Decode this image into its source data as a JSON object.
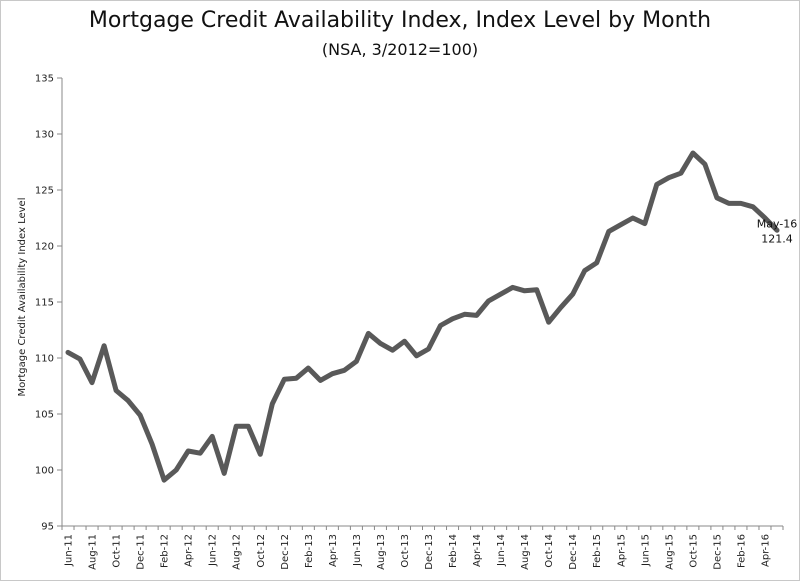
{
  "chart_data": {
    "type": "line",
    "title": "Mortgage Credit Availability Index, Index Level by Month",
    "subtitle": "(NSA, 3/2012=100)",
    "ylabel": "Mortgage Credit Availability Index Level",
    "xlabel": "",
    "ylim": [
      95,
      135
    ],
    "yticks": [
      95,
      100,
      105,
      110,
      115,
      120,
      125,
      130,
      135
    ],
    "xtick_labels": [
      "Jun-11",
      "Aug-11",
      "Oct-11",
      "Dec-11",
      "Feb-12",
      "Apr-12",
      "Jun-12",
      "Aug-12",
      "Oct-12",
      "Dec-12",
      "Feb-13",
      "Apr-13",
      "Jun-13",
      "Aug-13",
      "Oct-13",
      "Dec-13",
      "Feb-14",
      "Apr-14",
      "Jun-14",
      "Aug-14",
      "Oct-14",
      "Dec-14",
      "Feb-15",
      "Apr-15",
      "Jun-15",
      "Aug-15",
      "Oct-15",
      "Dec-15",
      "Feb-16",
      "Apr-16"
    ],
    "grid": false,
    "line_color": "#595959",
    "series": [
      {
        "x": [
          "Jun-11",
          "Jul-11",
          "Aug-11",
          "Sep-11",
          "Oct-11",
          "Nov-11",
          "Dec-11",
          "Jan-12",
          "Feb-12",
          "Mar-12",
          "Apr-12",
          "May-12",
          "Jun-12",
          "Jul-12",
          "Aug-12",
          "Sep-12",
          "Oct-12",
          "Nov-12",
          "Dec-12",
          "Jan-13",
          "Feb-13",
          "Mar-13",
          "Apr-13",
          "May-13",
          "Jun-13",
          "Jul-13",
          "Aug-13",
          "Sep-13",
          "Oct-13",
          "Nov-13",
          "Dec-13",
          "Jan-14",
          "Feb-14",
          "Mar-14",
          "Apr-14",
          "May-14",
          "Jun-14",
          "Jul-14",
          "Aug-14",
          "Sep-14",
          "Oct-14",
          "Nov-14",
          "Dec-14",
          "Jan-15",
          "Feb-15",
          "Mar-15",
          "Apr-15",
          "May-15",
          "Jun-15",
          "Jul-15",
          "Aug-15",
          "Sep-15",
          "Oct-15",
          "Nov-15",
          "Dec-15",
          "Jan-16",
          "Feb-16",
          "Mar-16",
          "Apr-16",
          "May-16"
        ],
        "values": [
          110.5,
          109.9,
          107.8,
          111.1,
          107.1,
          106.2,
          104.9,
          102.3,
          99.1,
          100.0,
          101.7,
          101.5,
          103.0,
          99.7,
          103.9,
          103.9,
          101.4,
          105.9,
          108.1,
          108.2,
          109.1,
          108.0,
          108.6,
          108.9,
          109.7,
          112.2,
          111.3,
          110.7,
          111.5,
          110.2,
          110.8,
          112.9,
          113.5,
          113.9,
          113.8,
          115.1,
          115.7,
          116.3,
          116.0,
          116.1,
          113.2,
          114.5,
          115.7,
          117.8,
          118.5,
          121.3,
          121.9,
          122.5,
          122.0,
          125.5,
          126.1,
          126.5,
          128.3,
          127.3,
          124.3,
          123.8,
          123.8,
          123.5,
          122.5,
          121.4
        ]
      }
    ],
    "annotations": [
      {
        "label": "May-16",
        "value_text": "121.4"
      }
    ]
  }
}
